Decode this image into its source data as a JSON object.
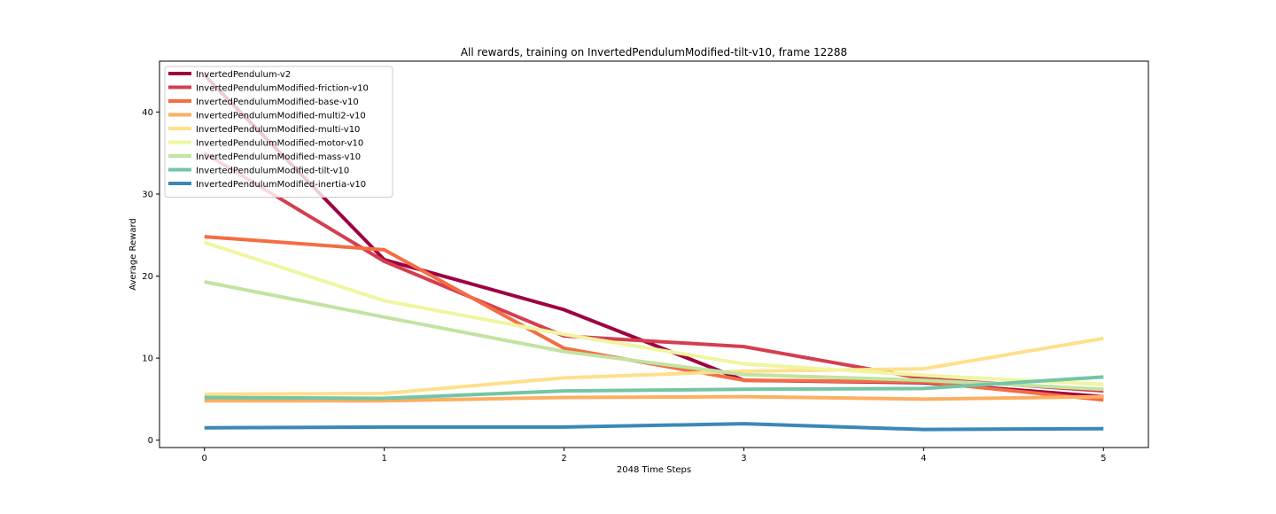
{
  "chart_data": {
    "type": "line",
    "title": "All rewards, training on InvertedPendulumModified-tilt-v10, frame 12288",
    "xlabel": "2048 Time Steps",
    "ylabel": "Average Reward",
    "x": [
      0,
      1,
      2,
      3,
      4,
      5
    ],
    "xlim": [
      -0.25,
      5.25
    ],
    "ylim": [
      -0.9,
      46.2
    ],
    "xticks": [
      0,
      1,
      2,
      3,
      4,
      5
    ],
    "yticks": [
      0,
      10,
      20,
      30,
      40
    ],
    "grid": false,
    "legend_position": "top-left",
    "series": [
      {
        "name": "InvertedPendulum-v2",
        "color": "#9e0142",
        "values": [
          44.5,
          22.0,
          15.9,
          7.3,
          7.0,
          5.3
        ]
      },
      {
        "name": "InvertedPendulumModified-friction-v10",
        "color": "#d53e4f",
        "values": [
          35.0,
          21.8,
          12.7,
          11.4,
          7.5,
          6.0
        ]
      },
      {
        "name": "InvertedPendulumModified-base-v10",
        "color": "#f46d43",
        "values": [
          24.8,
          23.2,
          11.2,
          7.3,
          7.1,
          4.9
        ]
      },
      {
        "name": "InvertedPendulumModified-multi2-v10",
        "color": "#fdae61",
        "values": [
          4.8,
          4.8,
          5.2,
          5.3,
          5.0,
          5.3
        ]
      },
      {
        "name": "InvertedPendulumModified-multi-v10",
        "color": "#fee08b",
        "values": [
          5.6,
          5.7,
          7.6,
          8.4,
          8.7,
          12.4
        ]
      },
      {
        "name": "InvertedPendulumModified-motor-v10",
        "color": "#f0f5a0",
        "values": [
          24.1,
          17.0,
          12.9,
          9.3,
          7.9,
          6.8
        ]
      },
      {
        "name": "InvertedPendulumModified-mass-v10",
        "color": "#c2e3a1",
        "values": [
          19.3,
          15.0,
          10.8,
          8.0,
          7.3,
          6.2
        ]
      },
      {
        "name": "InvertedPendulumModified-tilt-v10",
        "color": "#74c5a5",
        "values": [
          5.2,
          5.1,
          6.0,
          6.2,
          6.3,
          7.7
        ]
      },
      {
        "name": "InvertedPendulumModified-inertia-v10",
        "color": "#3b88b8",
        "values": [
          1.5,
          1.6,
          1.6,
          2.0,
          1.3,
          1.4
        ]
      }
    ]
  }
}
